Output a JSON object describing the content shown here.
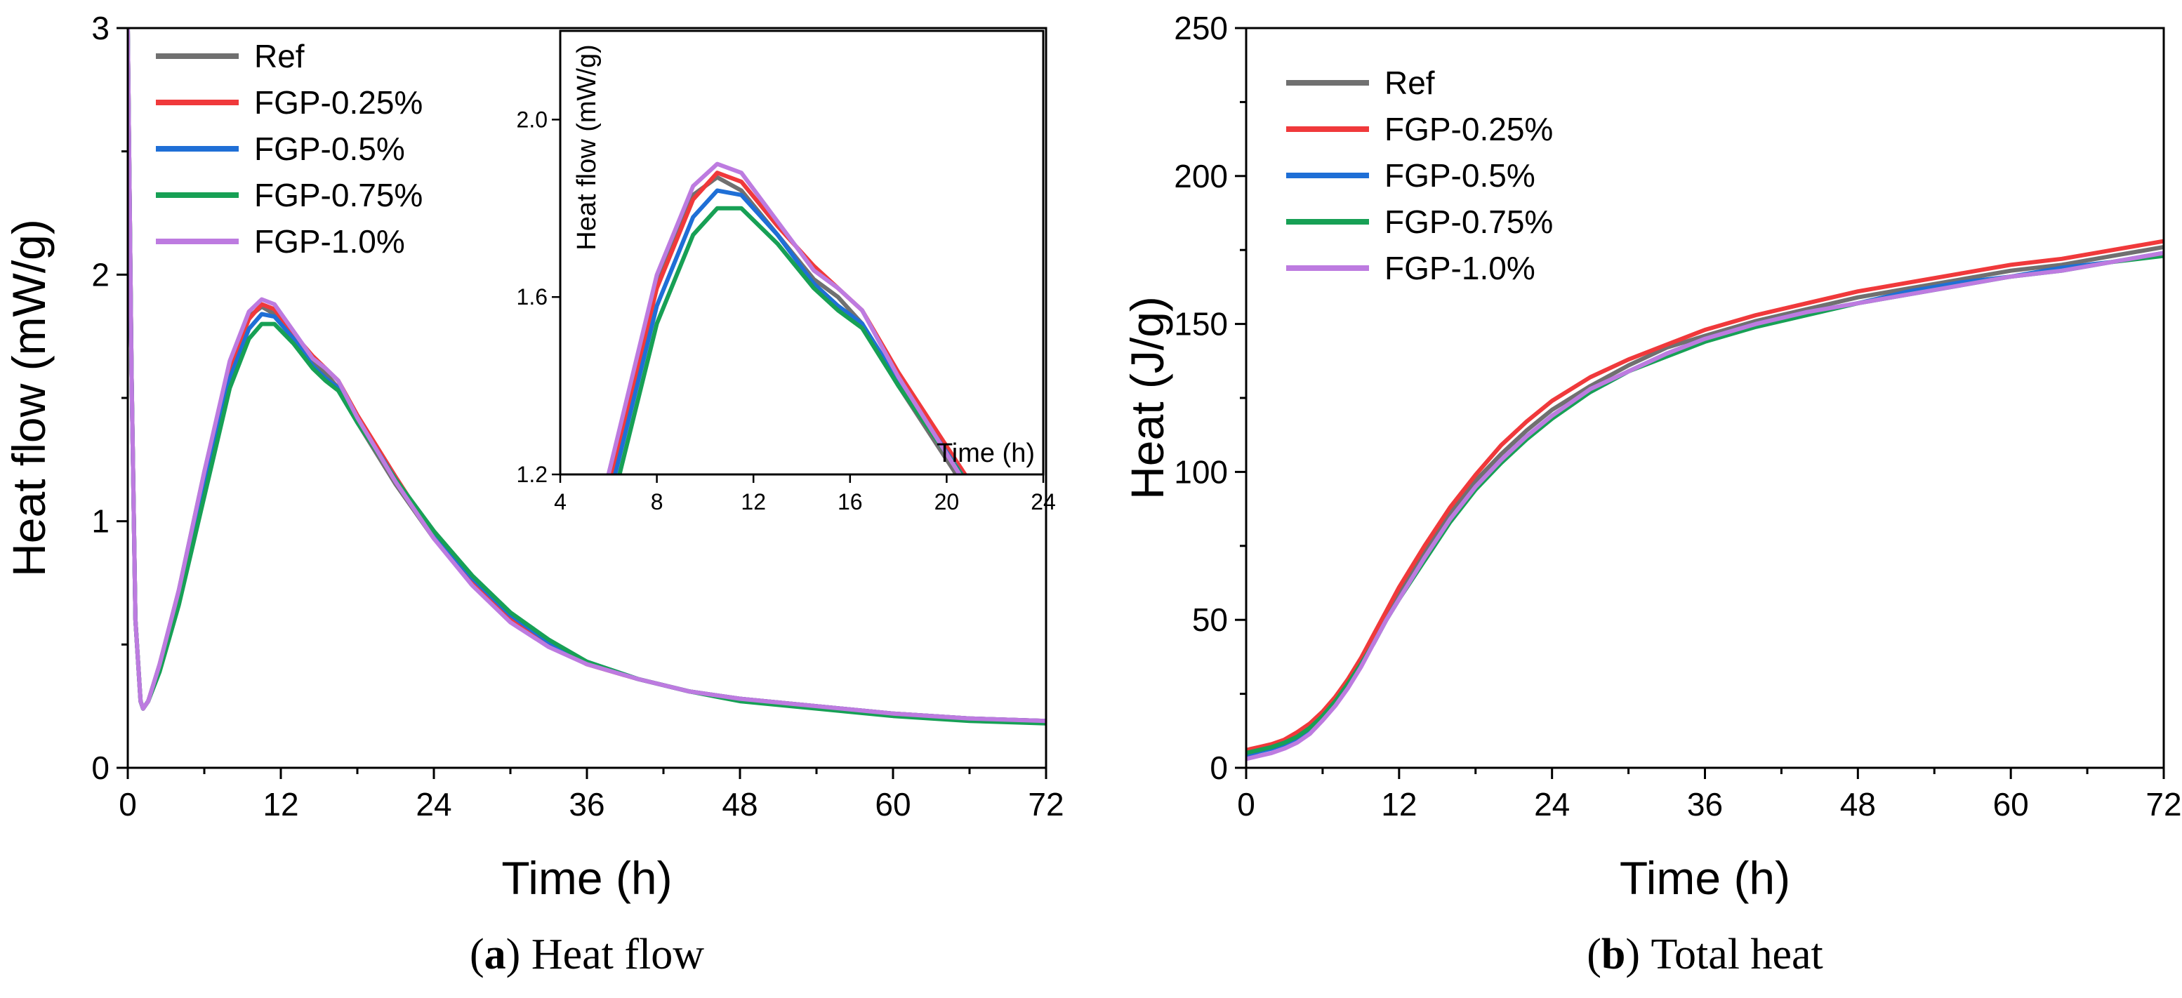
{
  "chart_data": [
    {
      "type": "line",
      "panel": "a",
      "caption_letter": "a",
      "caption_text": " Heat flow",
      "xlabel": "Time (h)",
      "ylabel": "Heat flow (mW/g)",
      "xlim": [
        0,
        72
      ],
      "ylim": [
        0,
        3
      ],
      "xticks": [
        0,
        12,
        24,
        36,
        48,
        60,
        72
      ],
      "yticks": [
        0,
        1,
        2,
        3
      ],
      "legend_position": "top-left",
      "grid": false,
      "series": [
        {
          "name": "Ref",
          "color": "#707070",
          "x": [
            0,
            0.3,
            0.6,
            1.0,
            1.2,
            1.6,
            2.5,
            4,
            6,
            8,
            9.5,
            10.5,
            11.5,
            13,
            14.5,
            15.5,
            16.5,
            18,
            21,
            24,
            27,
            30,
            33,
            36,
            40,
            44,
            48,
            54,
            60,
            66,
            72
          ],
          "y": [
            3.0,
            1.6,
            0.6,
            0.27,
            0.24,
            0.27,
            0.42,
            0.72,
            1.2,
            1.64,
            1.83,
            1.87,
            1.84,
            1.74,
            1.64,
            1.6,
            1.54,
            1.4,
            1.15,
            0.93,
            0.75,
            0.6,
            0.5,
            0.42,
            0.36,
            0.31,
            0.28,
            0.25,
            0.22,
            0.2,
            0.19
          ]
        },
        {
          "name": "FGP-0.25%",
          "color": "#f0393b",
          "x": [
            0,
            0.3,
            0.6,
            1.0,
            1.2,
            1.6,
            2.5,
            4,
            6,
            8,
            9.5,
            10.5,
            11.5,
            13,
            14.5,
            15.5,
            16.5,
            18,
            21,
            24,
            27,
            30,
            33,
            36,
            40,
            44,
            48,
            54,
            60,
            66,
            72
          ],
          "y": [
            3.0,
            1.6,
            0.6,
            0.27,
            0.24,
            0.27,
            0.41,
            0.7,
            1.17,
            1.62,
            1.82,
            1.88,
            1.86,
            1.76,
            1.67,
            1.62,
            1.57,
            1.43,
            1.18,
            0.94,
            0.75,
            0.6,
            0.5,
            0.42,
            0.36,
            0.31,
            0.28,
            0.25,
            0.22,
            0.2,
            0.19
          ]
        },
        {
          "name": "FGP-0.5%",
          "color": "#1f6fd6",
          "x": [
            0,
            0.3,
            0.6,
            1.0,
            1.2,
            1.6,
            2.5,
            4,
            6,
            8,
            9.5,
            10.5,
            11.5,
            13,
            14.5,
            15.5,
            16.5,
            18,
            21,
            24,
            27,
            30,
            33,
            36,
            40,
            44,
            48,
            54,
            60,
            66,
            72
          ],
          "y": [
            3.0,
            1.6,
            0.6,
            0.27,
            0.24,
            0.27,
            0.4,
            0.68,
            1.14,
            1.58,
            1.78,
            1.84,
            1.83,
            1.74,
            1.63,
            1.58,
            1.54,
            1.41,
            1.17,
            0.95,
            0.77,
            0.62,
            0.51,
            0.43,
            0.36,
            0.31,
            0.28,
            0.25,
            0.22,
            0.2,
            0.19
          ]
        },
        {
          "name": "FGP-0.75%",
          "color": "#17a055",
          "x": [
            0,
            0.3,
            0.6,
            1.0,
            1.2,
            1.6,
            2.5,
            4,
            6,
            8,
            9.5,
            10.5,
            11.5,
            13,
            14.5,
            15.5,
            16.5,
            18,
            21,
            24,
            27,
            30,
            33,
            36,
            40,
            44,
            48,
            54,
            60,
            66,
            72
          ],
          "y": [
            3.0,
            1.6,
            0.6,
            0.27,
            0.24,
            0.27,
            0.39,
            0.66,
            1.1,
            1.54,
            1.74,
            1.8,
            1.8,
            1.72,
            1.62,
            1.57,
            1.53,
            1.4,
            1.17,
            0.96,
            0.78,
            0.63,
            0.52,
            0.43,
            0.36,
            0.31,
            0.27,
            0.24,
            0.21,
            0.19,
            0.18
          ]
        },
        {
          "name": "FGP-1.0%",
          "color": "#bd7be0",
          "x": [
            0,
            0.3,
            0.6,
            1.0,
            1.2,
            1.6,
            2.5,
            4,
            6,
            8,
            9.5,
            10.5,
            11.5,
            13,
            14.5,
            15.5,
            16.5,
            18,
            21,
            24,
            27,
            30,
            33,
            36,
            40,
            44,
            48,
            54,
            60,
            66,
            72
          ],
          "y": [
            3.0,
            1.6,
            0.6,
            0.27,
            0.24,
            0.27,
            0.42,
            0.72,
            1.2,
            1.65,
            1.85,
            1.9,
            1.88,
            1.77,
            1.66,
            1.62,
            1.57,
            1.42,
            1.16,
            0.93,
            0.74,
            0.59,
            0.49,
            0.42,
            0.36,
            0.31,
            0.28,
            0.25,
            0.22,
            0.2,
            0.19
          ]
        }
      ],
      "inset": {
        "xlabel": "Time (h)",
        "ylabel": "Heat flow (mW/g)",
        "xlim": [
          4,
          24
        ],
        "ylim": [
          1.2,
          2.2
        ],
        "xticks": [
          4,
          8,
          12,
          16,
          20,
          24
        ],
        "yticks": [
          1.2,
          1.6,
          2.0
        ],
        "ytick_labels": [
          "1.2",
          "1.6",
          "2.0"
        ],
        "x_range": [
          5.5,
          21.5
        ]
      }
    },
    {
      "type": "line",
      "panel": "b",
      "caption_letter": "b",
      "caption_text": " Total heat",
      "xlabel": "Time (h)",
      "ylabel": "Heat (J/g)",
      "xlim": [
        0,
        72
      ],
      "ylim": [
        0,
        250
      ],
      "xticks": [
        0,
        12,
        24,
        36,
        48,
        60,
        72
      ],
      "yticks": [
        0,
        50,
        100,
        150,
        200,
        250
      ],
      "legend_position": "top-left",
      "grid": false,
      "series": [
        {
          "name": "Ref",
          "color": "#707070",
          "x": [
            0,
            1,
            2,
            3,
            4,
            5,
            6,
            7,
            8,
            9,
            10,
            11,
            12,
            14,
            16,
            18,
            20,
            22,
            24,
            27,
            30,
            33,
            36,
            40,
            44,
            48,
            52,
            56,
            60,
            64,
            68,
            72
          ],
          "y": [
            5,
            6.5,
            7.5,
            9,
            11,
            14,
            18,
            23,
            29,
            36,
            44,
            52,
            59,
            73,
            86,
            97,
            106,
            114,
            121,
            129,
            136,
            142,
            146,
            151,
            155,
            159,
            162,
            165,
            168,
            170,
            173,
            176
          ]
        },
        {
          "name": "FGP-0.25%",
          "color": "#f0393b",
          "x": [
            0,
            1,
            2,
            3,
            4,
            5,
            6,
            7,
            8,
            9,
            10,
            11,
            12,
            14,
            16,
            18,
            20,
            22,
            24,
            27,
            30,
            33,
            36,
            40,
            44,
            48,
            52,
            56,
            60,
            64,
            68,
            72
          ],
          "y": [
            6,
            7,
            8,
            9.5,
            12,
            15,
            19,
            24,
            30,
            37,
            45,
            53,
            61,
            75,
            88,
            99,
            109,
            117,
            124,
            132,
            138,
            143,
            148,
            153,
            157,
            161,
            164,
            167,
            170,
            172,
            175,
            178
          ]
        },
        {
          "name": "FGP-0.5%",
          "color": "#1f6fd6",
          "x": [
            0,
            1,
            2,
            3,
            4,
            5,
            6,
            7,
            8,
            9,
            10,
            11,
            12,
            14,
            16,
            18,
            20,
            22,
            24,
            27,
            30,
            33,
            36,
            40,
            44,
            48,
            52,
            56,
            60,
            64,
            68,
            72
          ],
          "y": [
            4,
            5.5,
            6.5,
            8,
            10,
            13,
            17,
            22,
            28,
            35,
            42,
            50,
            57,
            71,
            84,
            95,
            104,
            112,
            119,
            127,
            134,
            140,
            145,
            150,
            154,
            157,
            161,
            164,
            166,
            169,
            171,
            174
          ]
        },
        {
          "name": "FGP-0.75%",
          "color": "#17a055",
          "x": [
            0,
            1,
            2,
            3,
            4,
            5,
            6,
            7,
            8,
            9,
            10,
            11,
            12,
            14,
            16,
            18,
            20,
            22,
            24,
            27,
            30,
            33,
            36,
            40,
            44,
            48,
            52,
            56,
            60,
            64,
            68,
            72
          ],
          "y": [
            5,
            6,
            7,
            8.5,
            10.5,
            13.5,
            17.5,
            22.5,
            28.5,
            35,
            42,
            50,
            57,
            70,
            83,
            94,
            103,
            111,
            118,
            127,
            134,
            139,
            144,
            149,
            153,
            157,
            160,
            163,
            166,
            168,
            171,
            173
          ]
        },
        {
          "name": "FGP-1.0%",
          "color": "#bd7be0",
          "x": [
            0,
            1,
            2,
            3,
            4,
            5,
            6,
            7,
            8,
            9,
            10,
            11,
            12,
            14,
            16,
            18,
            20,
            22,
            24,
            27,
            30,
            33,
            36,
            40,
            44,
            48,
            52,
            56,
            60,
            64,
            68,
            72
          ],
          "y": [
            3,
            4,
            5,
            6.5,
            8.5,
            11.5,
            16,
            21,
            27,
            34,
            42,
            50,
            57,
            71,
            84,
            95,
            104,
            112,
            119,
            128,
            134,
            140,
            145,
            150,
            154,
            157,
            160,
            163,
            166,
            168,
            171,
            174
          ]
        }
      ]
    }
  ]
}
